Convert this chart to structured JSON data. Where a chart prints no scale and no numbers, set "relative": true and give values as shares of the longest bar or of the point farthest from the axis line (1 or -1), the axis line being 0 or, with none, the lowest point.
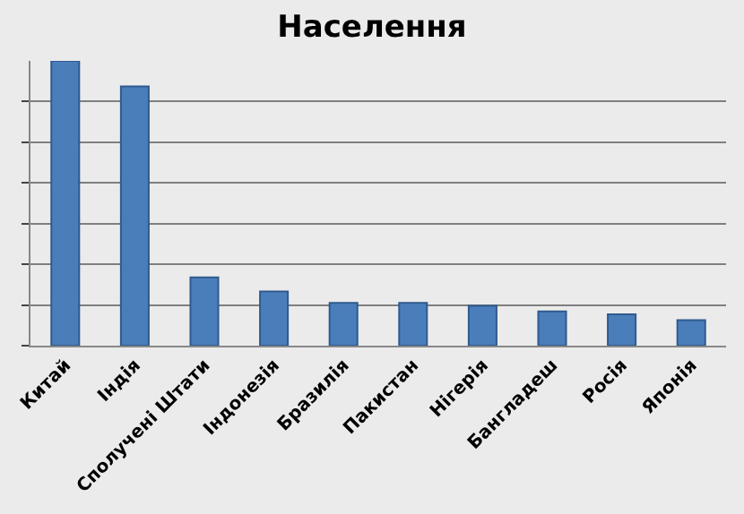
{
  "chart_data": {
    "type": "bar",
    "title": "Населення",
    "relative": true,
    "grid": "y",
    "legend": false,
    "categories": [
      "Китай",
      "Індія",
      "Сполучені Штати",
      "Індонезія",
      "Бразилія",
      "Пакистан",
      "Нігерія",
      "Бангладеш",
      "Росія",
      "Японія"
    ],
    "series": [
      {
        "color": "#4a7ebb",
        "values": [
          1,
          0.91,
          0.24,
          0.19,
          0.15,
          0.15,
          0.14,
          0.12,
          0.11,
          0.09
        ]
      }
    ]
  }
}
